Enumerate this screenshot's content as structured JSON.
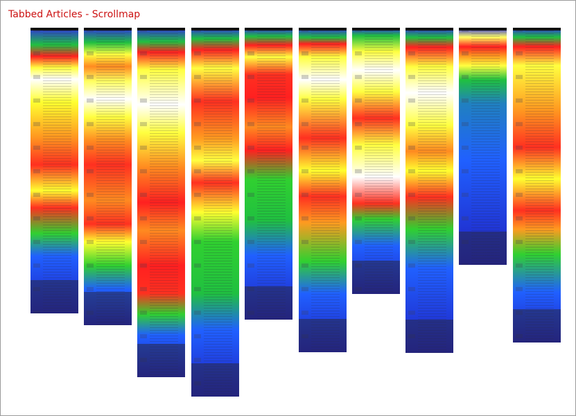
{
  "title": "Tabbed Articles - Scrollmap",
  "scrollmap": {
    "pages": [
      {
        "name": "page-1",
        "stops": [
          [
            "#3030e0",
            0
          ],
          [
            "#20c040",
            6
          ],
          [
            "#ff2020",
            10
          ],
          [
            "#ffff40",
            14
          ],
          [
            "#ffffff",
            18
          ],
          [
            "#ffff30",
            26
          ],
          [
            "#ff9a20",
            38
          ],
          [
            "#ff3020",
            48
          ],
          [
            "#ffff30",
            57
          ],
          [
            "#ff3020",
            63
          ],
          [
            "#30d030",
            72
          ],
          [
            "#2060ff",
            80
          ],
          [
            "#2020c0",
            100
          ]
        ]
      },
      {
        "name": "page-2",
        "stops": [
          [
            "#3030e0",
            0
          ],
          [
            "#20c040",
            5
          ],
          [
            "#ffff40",
            9
          ],
          [
            "#ff8a20",
            13
          ],
          [
            "#ffff60",
            18
          ],
          [
            "#ffffff",
            24
          ],
          [
            "#ffff40",
            30
          ],
          [
            "#ff8a20",
            38
          ],
          [
            "#ff3020",
            46
          ],
          [
            "#ff8a20",
            58
          ],
          [
            "#ff3020",
            66
          ],
          [
            "#ffff30",
            72
          ],
          [
            "#30d030",
            80
          ],
          [
            "#2060ff",
            88
          ],
          [
            "#2020c0",
            100
          ]
        ]
      },
      {
        "name": "page-3",
        "stops": [
          [
            "#3030e0",
            0
          ],
          [
            "#20c040",
            4
          ],
          [
            "#ff2020",
            7
          ],
          [
            "#ffff40",
            12
          ],
          [
            "#ffffff",
            22
          ],
          [
            "#ffff40",
            30
          ],
          [
            "#ff8a20",
            40
          ],
          [
            "#ff2020",
            50
          ],
          [
            "#ff8a20",
            58
          ],
          [
            "#ff2020",
            68
          ],
          [
            "#ff3020",
            76
          ],
          [
            "#30d030",
            82
          ],
          [
            "#2060ff",
            88
          ],
          [
            "#2020c0",
            100
          ]
        ]
      },
      {
        "name": "page-4",
        "stops": [
          [
            "#3030e0",
            0
          ],
          [
            "#20c040",
            3
          ],
          [
            "#ff2020",
            6
          ],
          [
            "#ffff40",
            11
          ],
          [
            "#ff3020",
            20
          ],
          [
            "#ff9a20",
            30
          ],
          [
            "#ffff40",
            36
          ],
          [
            "#ff3020",
            42
          ],
          [
            "#ffff30",
            50
          ],
          [
            "#30d030",
            58
          ],
          [
            "#20c040",
            72
          ],
          [
            "#2060ff",
            82
          ],
          [
            "#2020c0",
            100
          ]
        ]
      },
      {
        "name": "page-5",
        "stops": [
          [
            "#3030e0",
            0
          ],
          [
            "#20c040",
            3
          ],
          [
            "#ff2020",
            6
          ],
          [
            "#ffff40",
            10
          ],
          [
            "#ff3020",
            16
          ],
          [
            "#ff2020",
            24
          ],
          [
            "#ff8a20",
            34
          ],
          [
            "#ff2020",
            42
          ],
          [
            "#30d030",
            52
          ],
          [
            "#20c040",
            66
          ],
          [
            "#2060ff",
            78
          ],
          [
            "#2020c0",
            100
          ]
        ]
      },
      {
        "name": "page-6",
        "stops": [
          [
            "#3030e0",
            0
          ],
          [
            "#20c040",
            3
          ],
          [
            "#ff2020",
            5
          ],
          [
            "#ffff40",
            9
          ],
          [
            "#ffffff",
            16
          ],
          [
            "#ffff40",
            22
          ],
          [
            "#ff3020",
            34
          ],
          [
            "#ffff30",
            44
          ],
          [
            "#ff3020",
            52
          ],
          [
            "#ff9a20",
            60
          ],
          [
            "#30d030",
            72
          ],
          [
            "#2060ff",
            82
          ],
          [
            "#2020c0",
            100
          ]
        ]
      },
      {
        "name": "page-7",
        "stops": [
          [
            "#3030e0",
            0
          ],
          [
            "#20c040",
            3
          ],
          [
            "#ffff40",
            9
          ],
          [
            "#ffffff",
            16
          ],
          [
            "#ffff40",
            24
          ],
          [
            "#ff3020",
            34
          ],
          [
            "#ffff40",
            44
          ],
          [
            "#ffffff",
            56
          ],
          [
            "#ff3020",
            66
          ],
          [
            "#30d030",
            72
          ],
          [
            "#2060ff",
            82
          ],
          [
            "#2020c0",
            100
          ]
        ]
      },
      {
        "name": "page-8",
        "stops": [
          [
            "#3030e0",
            0
          ],
          [
            "#20c040",
            3
          ],
          [
            "#ff2020",
            6
          ],
          [
            "#ffff40",
            12
          ],
          [
            "#ffffff",
            20
          ],
          [
            "#ffff40",
            30
          ],
          [
            "#ff8a20",
            38
          ],
          [
            "#ffff30",
            44
          ],
          [
            "#ff3020",
            52
          ],
          [
            "#30d030",
            62
          ],
          [
            "#2060ff",
            74
          ],
          [
            "#2020c0",
            100
          ]
        ]
      },
      {
        "name": "page-9",
        "stops": [
          [
            "#3030e0",
            0
          ],
          [
            "#ffff60",
            4
          ],
          [
            "#ff2020",
            8
          ],
          [
            "#ff9a20",
            12
          ],
          [
            "#ffff40",
            16
          ],
          [
            "#20c040",
            22
          ],
          [
            "#2080c0",
            32
          ],
          [
            "#2060ff",
            56
          ],
          [
            "#2020c0",
            100
          ]
        ]
      },
      {
        "name": "page-10",
        "stops": [
          [
            "#3030e0",
            0
          ],
          [
            "#20c040",
            3
          ],
          [
            "#ff2020",
            6
          ],
          [
            "#ffff40",
            12
          ],
          [
            "#ff9a20",
            26
          ],
          [
            "#ff3020",
            38
          ],
          [
            "#ffff30",
            48
          ],
          [
            "#ff3020",
            58
          ],
          [
            "#ff9a20",
            64
          ],
          [
            "#30d030",
            72
          ],
          [
            "#2060ff",
            84
          ],
          [
            "#2020c0",
            100
          ]
        ]
      }
    ]
  }
}
